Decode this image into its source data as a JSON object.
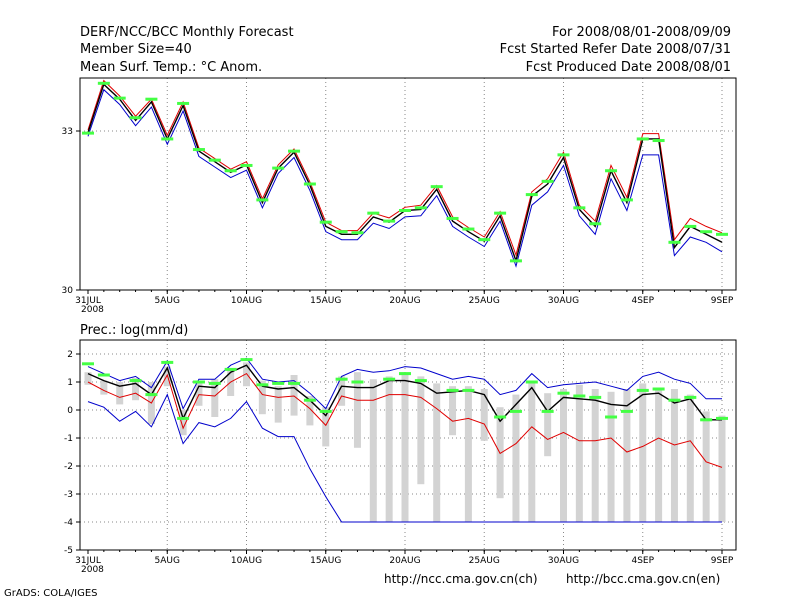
{
  "header": {
    "left": [
      "DERF/NCC/BCC Monthly Forecast",
      "Member Size=40",
      "Mean Surf. Temp.: °C Anom."
    ],
    "right": [
      "For 2008/08/01-2008/09/09",
      "Fcst Started Refer Date 2008/07/31",
      "Fcst Produced Date 2008/08/01"
    ]
  },
  "footer": {
    "grads": "GrADS: COLA/IGES",
    "url_ch": "http://ncc.cma.gov.cn(ch)",
    "url_en": "http://bcc.cma.gov.cn(en)"
  },
  "colors": {
    "mean": "#000000",
    "upper": "#e00000",
    "lower": "#0000cc",
    "marker": "#44ff44",
    "bar": "#d3d3d3",
    "grid": "#888888"
  },
  "chart_data": [
    {
      "type": "line",
      "title": "Mean Surf. Temp.: °C Anom.",
      "x": [
        "31JUL",
        "1AUG",
        "2AUG",
        "3AUG",
        "4AUG",
        "5AUG",
        "6AUG",
        "7AUG",
        "8AUG",
        "9AUG",
        "10AUG",
        "11AUG",
        "12AUG",
        "13AUG",
        "14AUG",
        "15AUG",
        "16AUG",
        "17AUG",
        "18AUG",
        "19AUG",
        "20AUG",
        "21AUG",
        "22AUG",
        "23AUG",
        "24AUG",
        "25AUG",
        "26AUG",
        "27AUG",
        "28AUG",
        "29AUG",
        "30AUG",
        "31AUG",
        "1SEP",
        "2SEP",
        "3SEP",
        "4SEP",
        "5SEP",
        "6SEP",
        "7SEP",
        "8SEP",
        "9SEP"
      ],
      "xticks": [
        "31JUL",
        "5AUG",
        "10AUG",
        "15AUG",
        "20AUG",
        "25AUG",
        "30AUG",
        "4SEP",
        "9SEP"
      ],
      "xtick_sub": "2008",
      "ylim": [
        30,
        34
      ],
      "yticks": [
        "30",
        "33"
      ],
      "ytick_values": [
        30,
        33
      ],
      "series": [
        {
          "name": "ensemble mean",
          "values": [
            32.97,
            33.88,
            33.6,
            33.2,
            33.55,
            32.85,
            33.48,
            32.62,
            32.42,
            32.22,
            32.36,
            31.65,
            32.3,
            32.6,
            31.98,
            31.2,
            31.05,
            31.05,
            31.38,
            31.28,
            31.5,
            31.52,
            31.9,
            31.3,
            31.1,
            30.92,
            31.4,
            30.55,
            31.77,
            32.0,
            32.5,
            31.52,
            31.2,
            32.25,
            31.65,
            32.85,
            32.85,
            30.8,
            31.2,
            31.05,
            30.9
          ]
        },
        {
          "name": "upper member",
          "values": [
            33.02,
            33.95,
            33.66,
            33.28,
            33.6,
            32.92,
            33.55,
            32.68,
            32.48,
            32.28,
            32.42,
            31.72,
            32.36,
            32.66,
            32.04,
            31.28,
            31.12,
            31.12,
            31.45,
            31.36,
            31.56,
            31.6,
            31.97,
            31.38,
            31.18,
            31.0,
            31.48,
            30.66,
            31.85,
            32.1,
            32.6,
            31.6,
            31.3,
            32.35,
            31.75,
            32.95,
            32.95,
            30.95,
            31.35,
            31.2,
            31.08
          ]
        },
        {
          "name": "lower member",
          "values": [
            32.9,
            33.78,
            33.5,
            33.1,
            33.45,
            32.75,
            33.38,
            32.52,
            32.32,
            32.12,
            32.26,
            31.55,
            32.2,
            32.5,
            31.88,
            31.1,
            30.95,
            30.95,
            31.26,
            31.16,
            31.38,
            31.4,
            31.78,
            31.2,
            31.0,
            30.82,
            31.3,
            30.45,
            31.6,
            31.85,
            32.35,
            31.4,
            31.05,
            32.1,
            31.5,
            32.55,
            32.55,
            30.65,
            31.0,
            30.9,
            30.72
          ]
        }
      ],
      "markers": [
        32.96,
        33.9,
        33.62,
        33.25,
        33.6,
        32.85,
        33.52,
        32.65,
        32.45,
        32.25,
        32.35,
        31.7,
        32.3,
        32.62,
        32.0,
        31.28,
        31.1,
        31.08,
        31.45,
        31.3,
        31.5,
        31.55,
        31.95,
        31.35,
        31.15,
        30.95,
        31.45,
        30.55,
        31.8,
        32.05,
        32.55,
        31.55,
        31.25,
        32.25,
        31.7,
        32.85,
        32.82,
        30.9,
        31.2,
        31.1,
        31.05
      ]
    },
    {
      "type": "line",
      "title": "Prec.: log(mm/d)",
      "x": [
        "31JUL",
        "1AUG",
        "2AUG",
        "3AUG",
        "4AUG",
        "5AUG",
        "6AUG",
        "7AUG",
        "8AUG",
        "9AUG",
        "10AUG",
        "11AUG",
        "12AUG",
        "13AUG",
        "14AUG",
        "15AUG",
        "16AUG",
        "17AUG",
        "18AUG",
        "19AUG",
        "20AUG",
        "21AUG",
        "22AUG",
        "23AUG",
        "24AUG",
        "25AUG",
        "26AUG",
        "27AUG",
        "28AUG",
        "29AUG",
        "30AUG",
        "31AUG",
        "1SEP",
        "2SEP",
        "3SEP",
        "4SEP",
        "5SEP",
        "6SEP",
        "7SEP",
        "8SEP",
        "9SEP"
      ],
      "xticks": [
        "31JUL",
        "5AUG",
        "10AUG",
        "15AUG",
        "20AUG",
        "25AUG",
        "30AUG",
        "4SEP",
        "9SEP"
      ],
      "xtick_sub": "2008",
      "ylim": [
        -5,
        2.5
      ],
      "yticks": [
        "-5",
        "-4",
        "-3",
        "-2",
        "-1",
        "0",
        "1",
        "2"
      ],
      "ytick_values": [
        -5,
        -4,
        -3,
        -2,
        -1,
        0,
        1,
        2
      ],
      "series": [
        {
          "name": "ensemble mean",
          "values": [
            1.3,
            1.05,
            0.85,
            0.95,
            0.55,
            1.5,
            -0.3,
            0.85,
            0.8,
            1.35,
            1.6,
            0.85,
            0.75,
            0.8,
            0.35,
            -0.2,
            0.85,
            0.8,
            0.8,
            1.05,
            1.05,
            0.95,
            0.6,
            0.65,
            0.7,
            0.55,
            -0.4,
            0.2,
            0.8,
            -0.05,
            0.45,
            0.4,
            0.35,
            0.2,
            0.15,
            0.55,
            0.6,
            0.25,
            0.4,
            -0.35,
            -0.35
          ]
        },
        {
          "name": "upper member",
          "values": [
            1.55,
            1.3,
            1.05,
            1.2,
            0.8,
            1.75,
            0.05,
            1.1,
            1.1,
            1.6,
            1.85,
            1.1,
            1.0,
            1.05,
            0.6,
            0.05,
            1.2,
            1.45,
            1.35,
            1.4,
            1.55,
            1.5,
            1.3,
            1.1,
            1.2,
            1.1,
            0.55,
            0.7,
            1.3,
            0.8,
            0.9,
            0.95,
            1.0,
            0.85,
            0.7,
            1.2,
            1.35,
            1.1,
            0.95,
            0.4,
            0.4
          ]
        },
        {
          "name": "lower red",
          "values": [
            1.0,
            0.7,
            0.45,
            0.6,
            0.25,
            1.25,
            -0.65,
            0.55,
            0.5,
            1.0,
            1.3,
            0.55,
            0.45,
            0.5,
            0.05,
            -0.55,
            0.5,
            0.35,
            0.35,
            0.55,
            0.55,
            0.45,
            0.05,
            -0.4,
            -0.3,
            -0.5,
            -1.55,
            -1.2,
            -0.6,
            -1.05,
            -0.8,
            -1.1,
            -1.1,
            -1.0,
            -1.5,
            -1.3,
            -1.0,
            -1.25,
            -1.1,
            -1.85,
            -2.05
          ]
        },
        {
          "name": "lower blue",
          "values": [
            0.3,
            0.1,
            -0.4,
            -0.05,
            -0.6,
            0.55,
            -1.2,
            -0.45,
            -0.6,
            -0.3,
            0.3,
            -0.65,
            -0.95,
            -0.95,
            -2.1,
            -3.1,
            -4,
            -4,
            -4,
            -4,
            -4,
            -4,
            -4,
            -4,
            -4,
            -4,
            -4,
            -4,
            -4,
            -4,
            -4,
            -4,
            -4,
            -4,
            -4,
            -4,
            -4,
            -4,
            -4,
            -4,
            -4
          ]
        }
      ],
      "bars": [
        [
          0.9,
          1.35
        ],
        [
          0.55,
          1.05
        ],
        [
          0.2,
          1.0
        ],
        [
          0.35,
          1.15
        ],
        [
          -0.5,
          1.0
        ],
        [
          0.85,
          1.55
        ],
        [
          -0.9,
          0.0
        ],
        [
          0.15,
          1.05
        ],
        [
          -0.25,
          1.1
        ],
        [
          0.5,
          1.45
        ],
        [
          0.85,
          1.7
        ],
        [
          -0.15,
          1.05
        ],
        [
          -0.45,
          0.85
        ],
        [
          -0.2,
          1.25
        ],
        [
          -0.55,
          0.5
        ],
        [
          -1.3,
          0.1
        ],
        [
          0.15,
          1.2
        ],
        [
          -1.35,
          1.35
        ],
        [
          -4,
          1.1
        ],
        [
          -4,
          1.2
        ],
        [
          -4,
          1.3
        ],
        [
          -2.65,
          1.2
        ],
        [
          -4,
          0.95
        ],
        [
          -0.9,
          0.85
        ],
        [
          -4,
          0.85
        ],
        [
          -1.1,
          0.75
        ],
        [
          -3.15,
          0.1
        ],
        [
          -4,
          0.55
        ],
        [
          -4,
          0.95
        ],
        [
          -1.65,
          0.6
        ],
        [
          -4,
          0.75
        ],
        [
          -4,
          0.9
        ],
        [
          -4,
          0.75
        ],
        [
          -4,
          0.65
        ],
        [
          -4,
          0.75
        ],
        [
          -4,
          0.95
        ],
        [
          -4,
          0.8
        ],
        [
          -4,
          0.75
        ],
        [
          -4,
          0.55
        ],
        [
          -4,
          -0.05
        ],
        [
          -4,
          -0.2
        ]
      ],
      "markers": [
        1.65,
        1.25,
        null,
        1.05,
        0.55,
        1.7,
        -0.3,
        1.0,
        0.95,
        1.45,
        1.8,
        0.9,
        0.95,
        0.95,
        0.35,
        -0.05,
        1.1,
        1.0,
        null,
        1.1,
        1.3,
        1.05,
        null,
        0.7,
        0.7,
        null,
        -0.25,
        -0.05,
        1.0,
        -0.05,
        0.6,
        0.5,
        0.45,
        -0.25,
        -0.05,
        0.7,
        0.75,
        0.35,
        0.45,
        -0.35,
        -0.3
      ]
    }
  ]
}
